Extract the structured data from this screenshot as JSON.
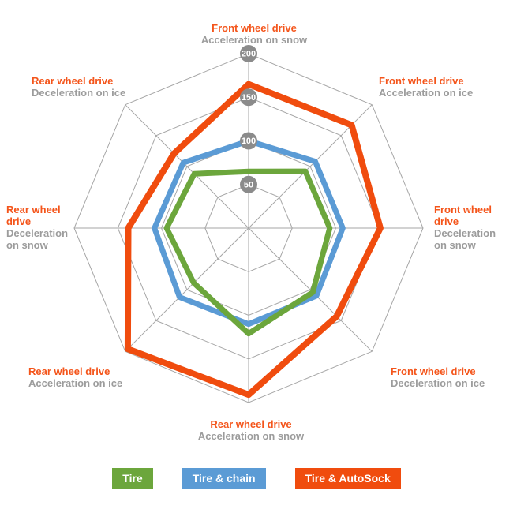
{
  "axis_labels": {
    "top": {
      "drive": "Front wheel drive",
      "condition": "Acceleration on snow"
    },
    "top_right": {
      "drive": "Front wheel drive",
      "condition": "Acceleration on ice"
    },
    "right": {
      "drive": "Front wheel drive",
      "condition": "Deceleration on snow"
    },
    "bottom_right": {
      "drive": "Front wheel drive",
      "condition": "Deceleration on ice"
    },
    "bottom": {
      "drive": "Rear wheel drive",
      "condition": "Acceleration on snow"
    },
    "bottom_left": {
      "drive": "Rear wheel drive",
      "condition": "Acceleration on ice"
    },
    "left": {
      "drive": "Rear wheel drive",
      "condition": "Deceleration on snow"
    },
    "top_left": {
      "drive": "Rear wheel drive",
      "condition": "Deceleration on ice"
    }
  },
  "chart_data": {
    "type": "radar",
    "categories": [
      "Front wheel drive - Acceleration on snow",
      "Front wheel drive - Acceleration on ice",
      "Front wheel drive - Deceleration on snow",
      "Front wheel drive - Deceleration on ice",
      "Rear wheel drive - Acceleration on snow",
      "Rear wheel drive - Acceleration on ice",
      "Rear wheel drive - Deceleration on snow",
      "Rear wheel drive - Deceleration on ice"
    ],
    "series": [
      {
        "name": "Tire",
        "color": "#6ca63c",
        "values": [
          65,
          92,
          93,
          104,
          121,
          89,
          94,
          88
        ]
      },
      {
        "name": "Tire & chain",
        "color": "#5b9bd5",
        "values": [
          100,
          108,
          108,
          110,
          110,
          112,
          108,
          106
        ]
      },
      {
        "name": "Tire & AutoSock",
        "color": "#f04c0e",
        "values": [
          165,
          167,
          151,
          143,
          191,
          196,
          138,
          121
        ]
      }
    ],
    "ticks": [
      50,
      100,
      150,
      200
    ],
    "max": 200,
    "grid_on": true,
    "grid_color": "#a6a6a6",
    "tick_circle_color": "#8b8b8b",
    "tick_text_color": "#ffffff",
    "legend_position": "bottom"
  },
  "legend": {
    "items": [
      {
        "label": "Tire",
        "color": "#6ca63c"
      },
      {
        "label": "Tire & chain",
        "color": "#5b9bd5"
      },
      {
        "label": "Tire & AutoSock",
        "color": "#f04c0e"
      }
    ]
  },
  "colors": {
    "drive_label": "#f4551b",
    "condition_label": "#9c9c9c"
  }
}
